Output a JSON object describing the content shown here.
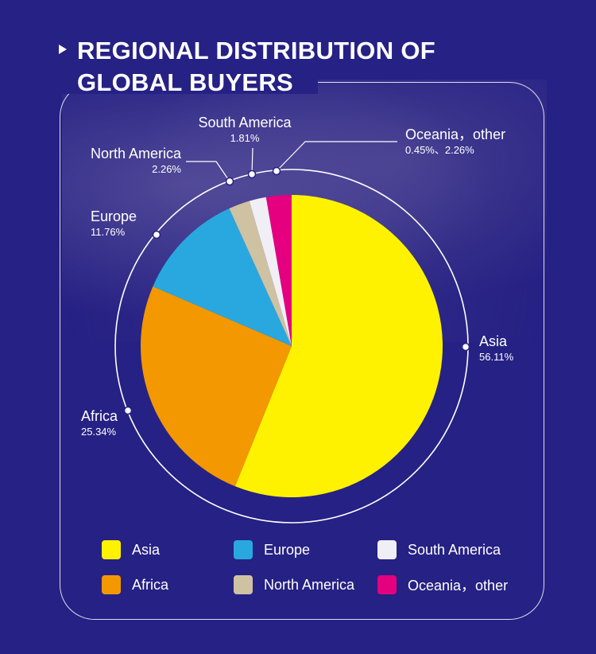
{
  "title": "REGIONAL DISTRIBUTION OF\nGLOBAL BUYERS",
  "chart_data": {
    "type": "pie",
    "title": "REGIONAL DISTRIBUTION OF GLOBAL BUYERS",
    "slices": [
      {
        "name": "Asia",
        "value": 56.11,
        "color": "#FFF200"
      },
      {
        "name": "Africa",
        "value": 25.34,
        "color": "#F39800"
      },
      {
        "name": "Europe",
        "value": 11.76,
        "color": "#29A8E0"
      },
      {
        "name": "North America",
        "value": 2.26,
        "color": "#CFC2A2"
      },
      {
        "name": "South America",
        "value": 1.81,
        "color": "#EFEFF5"
      },
      {
        "name": "Oceania，other",
        "value": 2.71,
        "color": "#E4007F"
      }
    ],
    "labels": [
      {
        "name": "Asia",
        "pct": "56.11%"
      },
      {
        "name": "Africa",
        "pct": "25.34%"
      },
      {
        "name": "Europe",
        "pct": "11.76%"
      },
      {
        "name": "North America",
        "pct": "2.26%"
      },
      {
        "name": "South America",
        "pct": "1.81%"
      },
      {
        "name": "Oceania，other",
        "pct": "0.45%、2.26%"
      }
    ],
    "legend_position": "bottom"
  },
  "legend": [
    {
      "label": "Asia",
      "color": "#FFF200"
    },
    {
      "label": "Europe",
      "color": "#29A8E0"
    },
    {
      "label": "South America",
      "color": "#EFEFF5"
    },
    {
      "label": "Africa",
      "color": "#F39800"
    },
    {
      "label": "North America",
      "color": "#CFC2A2"
    },
    {
      "label": "Oceania，other",
      "color": "#E4007F"
    }
  ]
}
